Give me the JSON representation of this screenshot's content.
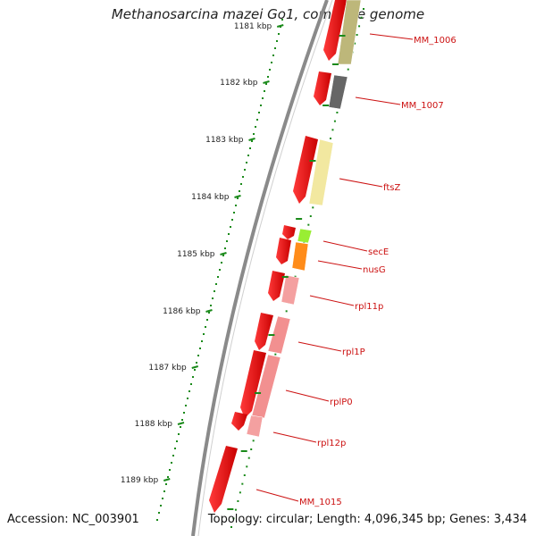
{
  "title": "Methanosarcina mazei Go1, complete genome",
  "footer": {
    "accession": "Accession: NC_003901",
    "topology": "Topology: circular; Length: 4,096,345 bp; Genes: 3,434"
  },
  "scale_labels": [
    "1181 kbp",
    "1182 kbp",
    "1183 kbp",
    "1184 kbp",
    "1185 kbp",
    "1186 kbp",
    "1187 kbp",
    "1188 kbp",
    "1189 kbp"
  ],
  "genes": [
    {
      "label": "MM_1006",
      "cog_color": "#bdb77a"
    },
    {
      "label": "MM_1007",
      "cog_color": "#666666"
    },
    {
      "label": "ftsZ",
      "cog_color": "#f2e8a0"
    },
    {
      "label": "secE",
      "cog_color": "#99ee33"
    },
    {
      "label": "nusG",
      "cog_color": "#ff8c1a"
    },
    {
      "label": "rpl11p",
      "cog_color": "#f4a0a0"
    },
    {
      "label": "rpl1P",
      "cog_color": "#f29090"
    },
    {
      "label": "rplP0",
      "cog_color": "#f29090"
    },
    {
      "label": "rpl12p",
      "cog_color": "#f4a0a0"
    },
    {
      "label": "MM_1015",
      "cog_color": "#f4a0a0"
    }
  ],
  "colors": {
    "cds": "#ee1111",
    "backbone": "#8a8a8a",
    "tick": "#1a8a1a",
    "label": "#cc1111"
  }
}
